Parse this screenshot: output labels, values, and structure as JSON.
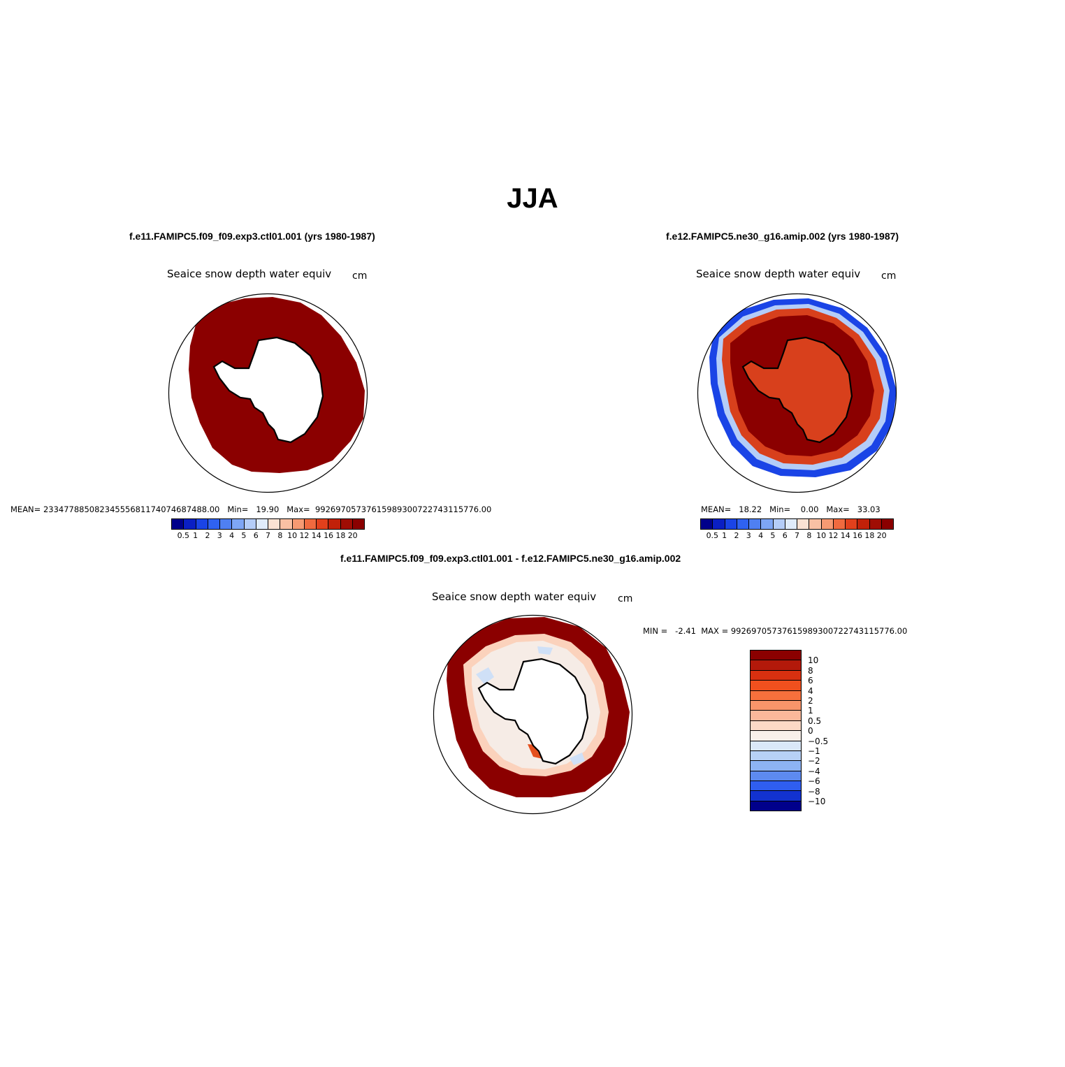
{
  "title": "JJA",
  "panels": [
    {
      "case_title": "f.e11.FAMIPC5.f09_f09.exp3.ctl01.001 (yrs 1980-1987)",
      "variable": "Seaice snow depth water equiv",
      "units": "cm",
      "stats": "MEAN= 233477885082345556811740746874 88.00   Min=   19.90   Max=  99269705737615989300722743115776.00"
    },
    {
      "case_title": "f.e12.FAMIPC5.ne30_g16.amip.002 (yrs 1980-1987)",
      "variable": "Seaice snow depth water equiv",
      "units": "cm",
      "stats": "MEAN=   18.22   Min=    0.00   Max=   33.03"
    },
    {
      "case_title": "f.e11.FAMIPC5.f09_f09.exp3.ctl01.001 - f.e12.FAMIPC5.ne30_g16.amip.002",
      "variable": "Seaice snow depth water equiv",
      "units": "cm",
      "stats": "MIN =   -2.41  MAX = 99269705737615989300722743115776.00"
    }
  ],
  "colorbar_levels": [
    "0.5",
    "1",
    "2",
    "3",
    "4",
    "5",
    "6",
    "7",
    "8",
    "10",
    "12",
    "14",
    "16",
    "18",
    "20"
  ],
  "colorbar_colors": [
    "#00008b",
    "#0a1fc4",
    "#1a44e6",
    "#2f62f0",
    "#4f80f2",
    "#7ea6f5",
    "#b4cdf8",
    "#e0ecfb",
    "#fbe2d3",
    "#f9c0a4",
    "#f69a73",
    "#f06a3f",
    "#e2401c",
    "#c12109",
    "#a00d04",
    "#8b0000"
  ],
  "diff_levels": [
    "10",
    "8",
    "6",
    "4",
    "2",
    "1",
    "0.5",
    "0",
    "−0.5",
    "−1",
    "−2",
    "−4",
    "−6",
    "−8",
    "−10"
  ],
  "diff_colors": [
    "#8b0000",
    "#b3190a",
    "#d83010",
    "#f0501e",
    "#f7703c",
    "#f9956a",
    "#fbb89a",
    "#fcd9c6",
    "#f8f0ea",
    "#dae8f8",
    "#b7d1f6",
    "#8db3f3",
    "#5d8af0",
    "#2f5ef0",
    "#1232d0",
    "#00008b"
  ],
  "map_colors": {
    "saturated": "#8b0000",
    "mid": "#d8401c",
    "light": "#f6a47e",
    "edge_blue": "#1a44e6",
    "edge_light": "#b4cdf8",
    "diff_light_red": "#fbd2bc",
    "diff_pale": "#f6ece6",
    "diff_light_blue": "#cfe0f7",
    "diff_hot": "#e5501e"
  }
}
